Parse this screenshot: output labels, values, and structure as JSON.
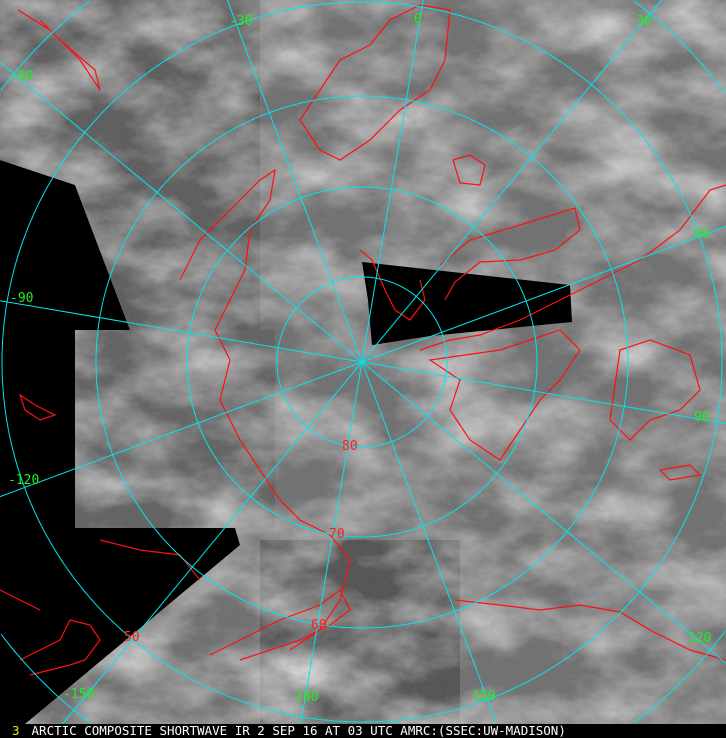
{
  "image": {
    "type": "polar stereographic satellite composite",
    "colors": {
      "graticule": "#00e5ee",
      "coastline": "#ff1010",
      "longitude_labels": "#22ee22",
      "latitude_labels": "#ff2020",
      "frame_number": "#f0e020",
      "caption": "#ffffff"
    }
  },
  "longitude_labels": {
    "l0": "0",
    "l30": "30",
    "l60": "60",
    "l90": "90",
    "l120": "120",
    "l150": "150",
    "l180": "180",
    "lm30": "-30",
    "lm60": "-60",
    "lm90": "-90",
    "lm120": "-120",
    "lm150": "-150"
  },
  "latitude_labels": {
    "l80": "80",
    "l70": "70",
    "l60": "60",
    "l50": "50"
  },
  "caption": {
    "frame_number": "3",
    "text": "ARCTIC COMPOSITE SHORTWAVE IR 2 SEP 16 AT 03 UTC AMRC:(SSEC:UW-MADISON)"
  }
}
